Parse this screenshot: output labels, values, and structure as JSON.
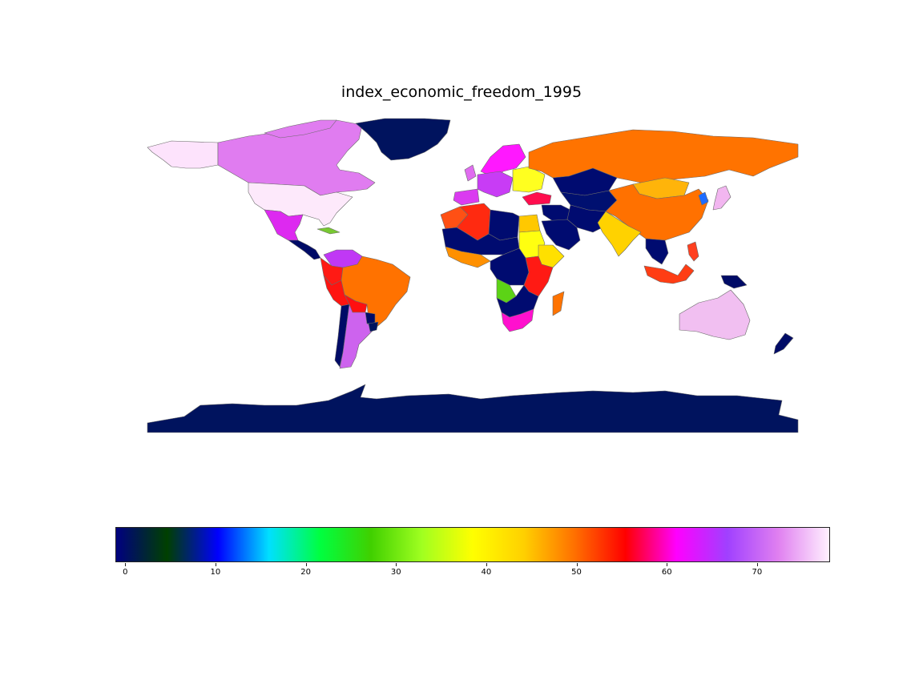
{
  "map": {
    "title": "index_economic_freedom_1995",
    "colormap": "gist_ncar",
    "legend_type": "colorbar",
    "colorbar": {
      "orientation": "horizontal",
      "min": -1,
      "max": 78,
      "ticks": [
        {
          "value": 0,
          "label": "0"
        },
        {
          "value": 10,
          "label": "10"
        },
        {
          "value": 20,
          "label": "20"
        },
        {
          "value": 30,
          "label": "30"
        },
        {
          "value": 40,
          "label": "40"
        },
        {
          "value": 50,
          "label": "50"
        },
        {
          "value": 60,
          "label": "60"
        },
        {
          "value": 70,
          "label": "70"
        }
      ],
      "gradient_colors": [
        "#000080",
        "#004000",
        "#0000ff",
        "#00e0ff",
        "#00ff40",
        "#40d000",
        "#a0ff20",
        "#ffff00",
        "#ffd000",
        "#ff7000",
        "#ff0000",
        "#ff00ff",
        "#a040ff",
        "#e080f0",
        "#fff0ff"
      ]
    },
    "regions": {
      "greenland": "#00135e",
      "canada": "#e07cf0",
      "alaska": "#fde3fc",
      "usa": "#fde9fb",
      "mexico": "#dd29f0",
      "central_america": "#000b66",
      "cuba": "#78c832",
      "venezuela": "#c038f5",
      "colombia": "#ff1a14",
      "peru": "#ff1410",
      "brazil": "#ff7200",
      "bolivia": "#ff1010",
      "argentina": "#cd63ee",
      "chile": "#000b66",
      "uruguay": "#00135e",
      "paraguay": "#000b66",
      "russia": "#ff7300",
      "china": "#ff7100",
      "mongolia": "#ffb40a",
      "kazakhstan": "#000b70",
      "central_asia": "#001070",
      "iran": "#000b70",
      "middle_east": "#000b70",
      "saudi_arabia": "#000b70",
      "turkey": "#ff0d4e",
      "india": "#ffd200",
      "southeast_asia": "#000b70",
      "indonesia": "#ff3d14",
      "philippines": "#ff4020",
      "japan": "#f2b6f0",
      "korea": "#1f6cff",
      "australia": "#f1bff1",
      "new_zealand": "#000b66",
      "png": "#000b66",
      "algeria": "#ff2a10",
      "morocco": "#ff5014",
      "libya": "#000b70",
      "egypt": "#ffc800",
      "sudan": "#ffff10",
      "sahel": "#000b70",
      "west_africa": "#ff9000",
      "central_africa": "#000b70",
      "angola": "#5cd316",
      "east_africa": "#ff1a14",
      "ethiopia": "#ffe000",
      "southern_africa": "#000b70",
      "south_africa": "#ff10ce",
      "madagascar": "#ff7300",
      "western_europe": "#c83cf5",
      "scandinavia": "#ff18ff",
      "eastern_europe": "#ffff20",
      "iberia": "#da3bf0",
      "uk": "#e06cf0",
      "antarctica": "#00135e"
    }
  }
}
